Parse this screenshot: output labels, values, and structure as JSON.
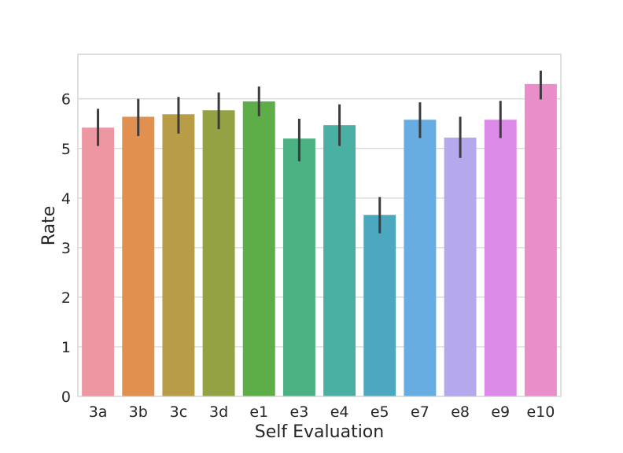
{
  "chart_data": {
    "type": "bar",
    "title": "",
    "xlabel": "Self Evaluation",
    "ylabel": "Rate",
    "categories": [
      "3a",
      "3b",
      "3c",
      "3d",
      "e1",
      "e3",
      "e4",
      "e5",
      "e7",
      "e8",
      "e9",
      "e10"
    ],
    "values": [
      5.42,
      5.64,
      5.69,
      5.77,
      5.95,
      5.2,
      5.47,
      3.66,
      5.58,
      5.22,
      5.58,
      6.3
    ],
    "error_low": [
      5.05,
      5.25,
      5.3,
      5.39,
      5.65,
      4.74,
      5.05,
      3.29,
      5.21,
      4.81,
      5.21,
      5.99
    ],
    "error_high": [
      5.8,
      6.0,
      6.04,
      6.13,
      6.25,
      5.6,
      5.89,
      4.02,
      5.93,
      5.64,
      5.96,
      6.57
    ],
    "colors": [
      "#ec97a1",
      "#e2904f",
      "#b89c46",
      "#95a244",
      "#5dae49",
      "#4bb182",
      "#4ab0a4",
      "#4ba8bf",
      "#68ade2",
      "#b5a8ec",
      "#dd8be9",
      "#e98ec8"
    ],
    "ylim": [
      0,
      6.9
    ],
    "yticks": [
      0,
      1,
      2,
      3,
      4,
      5,
      6
    ],
    "grid": "y",
    "legend": "none"
  }
}
